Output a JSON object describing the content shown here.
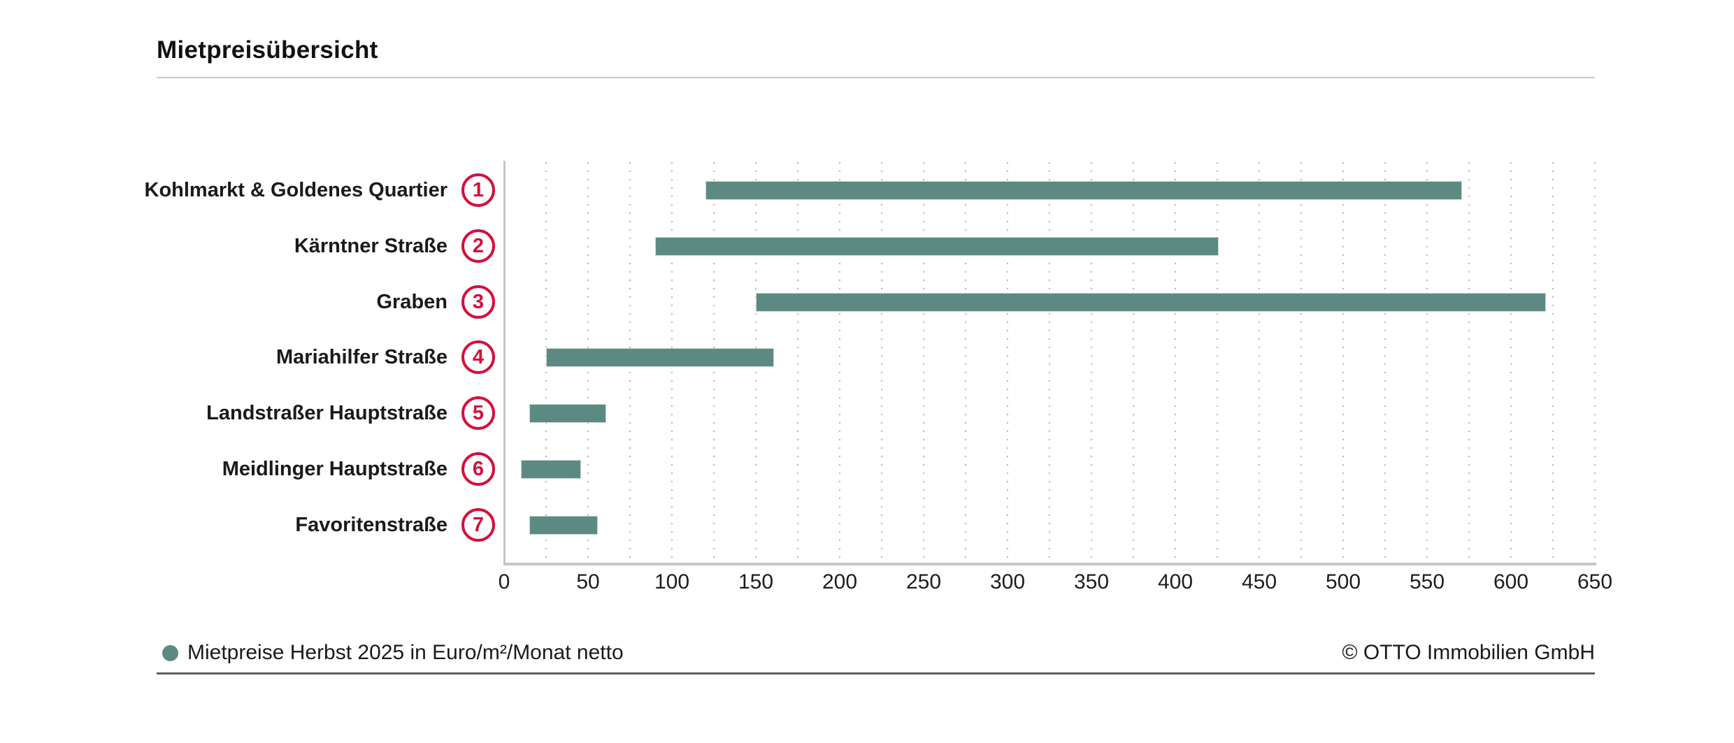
{
  "title": "Mietpreisübersicht",
  "chart_data": {
    "type": "bar",
    "subtype": "horizontal-range-bars",
    "title": "Mietpreisübersicht",
    "categories": [
      "Kohlmarkt & Goldenes Quartier",
      "Kärntner Straße",
      "Graben",
      "Mariahilfer Straße",
      "Landstraßer Hauptstraße",
      "Meidlinger Hauptstraße",
      "Favoritenstraße"
    ],
    "rank_labels": [
      "1",
      "2",
      "3",
      "4",
      "5",
      "6",
      "7"
    ],
    "series": [
      {
        "name": "Mietpreise Herbst 2025 in Euro/m²/Monat netto",
        "unit": "Euro/m²/Monat netto",
        "ranges": [
          {
            "min": 120,
            "max": 570
          },
          {
            "min": 90,
            "max": 425
          },
          {
            "min": 150,
            "max": 620
          },
          {
            "min": 25,
            "max": 160
          },
          {
            "min": 15,
            "max": 60
          },
          {
            "min": 10,
            "max": 45
          },
          {
            "min": 15,
            "max": 55
          }
        ]
      }
    ],
    "xlabel": "",
    "ylabel": "",
    "xlim": [
      0,
      650
    ],
    "x_ticks": [
      0,
      50,
      100,
      150,
      200,
      250,
      300,
      350,
      400,
      450,
      500,
      550,
      600,
      650
    ],
    "minor_gridline_step": 25,
    "grid_style": "dotted-vertical",
    "legend_position": "bottom-left"
  },
  "legend": {
    "label": "Mietpreise Herbst 2025 in Euro/m²/Monat netto"
  },
  "footer": {
    "copyright": "© OTTO Immobilien GmbH"
  },
  "colors": {
    "bar": "#5c8a83",
    "badge": "#d2113c",
    "axis": "#c6c6c6",
    "grid_dot": "#b4b4b4",
    "text": "#1a1a1a",
    "title_rule": "#c9c9c9",
    "footer_rule": "#5f5f5f"
  }
}
